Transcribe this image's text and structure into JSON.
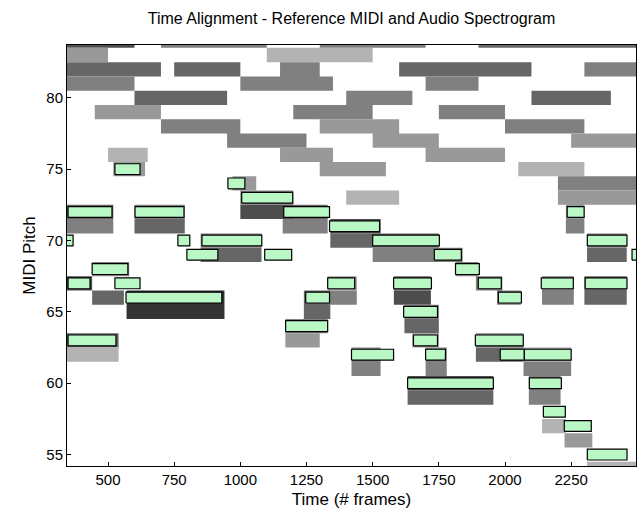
{
  "chart_data": {
    "type": "pianoroll",
    "title": "Time Alignment - Reference MIDI and Audio Spectrogram",
    "x_label": "Time (# frames)",
    "y_label": "MIDI Pitch",
    "xlim": [
      345,
      2495
    ],
    "ylim": [
      54.2,
      83.7
    ],
    "xticks": [
      500,
      750,
      1000,
      1250,
      1500,
      1750,
      2000,
      2250
    ],
    "yticks": [
      55,
      60,
      65,
      70,
      75,
      80
    ],
    "grid": false,
    "color": "#b9f7c4",
    "notes": [
      {
        "pitch": 70,
        "start": 330,
        "end": 368
      },
      {
        "pitch": 72,
        "start": 349,
        "end": 515
      },
      {
        "pitch": 63,
        "start": 349,
        "end": 530
      },
      {
        "pitch": 67,
        "start": 349,
        "end": 432
      },
      {
        "pitch": 68,
        "start": 440,
        "end": 575
      },
      {
        "pitch": 67,
        "start": 526,
        "end": 621
      },
      {
        "pitch": 75,
        "start": 526,
        "end": 621
      },
      {
        "pitch": 72,
        "start": 602,
        "end": 787
      },
      {
        "pitch": 66,
        "start": 568,
        "end": 930
      },
      {
        "pitch": 70,
        "start": 764,
        "end": 809
      },
      {
        "pitch": 69,
        "start": 798,
        "end": 915
      },
      {
        "pitch": 70,
        "start": 855,
        "end": 1081
      },
      {
        "pitch": 74,
        "start": 953,
        "end": 1017
      },
      {
        "pitch": 73,
        "start": 1005,
        "end": 1198
      },
      {
        "pitch": 72,
        "start": 1164,
        "end": 1337
      },
      {
        "pitch": 69,
        "start": 1092,
        "end": 1194
      },
      {
        "pitch": 64,
        "start": 1171,
        "end": 1330
      },
      {
        "pitch": 66,
        "start": 1247,
        "end": 1337
      },
      {
        "pitch": 67,
        "start": 1330,
        "end": 1432
      },
      {
        "pitch": 71,
        "start": 1337,
        "end": 1526
      },
      {
        "pitch": 62,
        "start": 1420,
        "end": 1579
      },
      {
        "pitch": 70,
        "start": 1500,
        "end": 1752
      },
      {
        "pitch": 67,
        "start": 1579,
        "end": 1722
      },
      {
        "pitch": 65,
        "start": 1617,
        "end": 1745
      },
      {
        "pitch": 63,
        "start": 1654,
        "end": 1745
      },
      {
        "pitch": 62,
        "start": 1700,
        "end": 1775
      },
      {
        "pitch": 69,
        "start": 1733,
        "end": 1835
      },
      {
        "pitch": 60,
        "start": 1632,
        "end": 1956
      },
      {
        "pitch": 68,
        "start": 1813,
        "end": 1903
      },
      {
        "pitch": 67,
        "start": 1899,
        "end": 1986
      },
      {
        "pitch": 63,
        "start": 1888,
        "end": 2069
      },
      {
        "pitch": 66,
        "start": 1975,
        "end": 2062
      },
      {
        "pitch": 62,
        "start": 1982,
        "end": 2073
      },
      {
        "pitch": 62,
        "start": 2073,
        "end": 2250
      },
      {
        "pitch": 67,
        "start": 2137,
        "end": 2258
      },
      {
        "pitch": 60,
        "start": 2092,
        "end": 2213
      },
      {
        "pitch": 58,
        "start": 2145,
        "end": 2228
      },
      {
        "pitch": 72,
        "start": 2235,
        "end": 2299
      },
      {
        "pitch": 57,
        "start": 2224,
        "end": 2326
      },
      {
        "pitch": 67,
        "start": 2303,
        "end": 2461
      },
      {
        "pitch": 70,
        "start": 2311,
        "end": 2461
      },
      {
        "pitch": 55,
        "start": 2311,
        "end": 2461
      },
      {
        "pitch": 69,
        "start": 2480,
        "end": 2510
      }
    ],
    "spectrogram": [
      {
        "pitch": 63,
        "start": 345,
        "end": 540,
        "intensity": 0.6
      },
      {
        "pitch": 62,
        "start": 345,
        "end": 540,
        "intensity": 0.3
      },
      {
        "pitch": 67,
        "start": 345,
        "end": 440,
        "intensity": 0.7
      },
      {
        "pitch": 68,
        "start": 440,
        "end": 580,
        "intensity": 0.5
      },
      {
        "pitch": 66,
        "start": 440,
        "end": 560,
        "intensity": 0.6
      },
      {
        "pitch": 72,
        "start": 345,
        "end": 520,
        "intensity": 0.6
      },
      {
        "pitch": 71,
        "start": 345,
        "end": 520,
        "intensity": 0.5
      },
      {
        "pitch": 66,
        "start": 570,
        "end": 940,
        "intensity": 0.8
      },
      {
        "pitch": 65,
        "start": 570,
        "end": 940,
        "intensity": 0.8
      },
      {
        "pitch": 72,
        "start": 600,
        "end": 790,
        "intensity": 0.5
      },
      {
        "pitch": 71,
        "start": 600,
        "end": 790,
        "intensity": 0.6
      },
      {
        "pitch": 70,
        "start": 850,
        "end": 1080,
        "intensity": 0.5
      },
      {
        "pitch": 69,
        "start": 850,
        "end": 1080,
        "intensity": 0.6
      },
      {
        "pitch": 73,
        "start": 1000,
        "end": 1200,
        "intensity": 0.5
      },
      {
        "pitch": 72,
        "start": 1000,
        "end": 1200,
        "intensity": 0.7
      },
      {
        "pitch": 72,
        "start": 1160,
        "end": 1330,
        "intensity": 0.6
      },
      {
        "pitch": 71,
        "start": 1160,
        "end": 1330,
        "intensity": 0.5
      },
      {
        "pitch": 64,
        "start": 1170,
        "end": 1330,
        "intensity": 0.5
      },
      {
        "pitch": 63,
        "start": 1170,
        "end": 1300,
        "intensity": 0.4
      },
      {
        "pitch": 66,
        "start": 1240,
        "end": 1340,
        "intensity": 0.6
      },
      {
        "pitch": 65,
        "start": 1240,
        "end": 1340,
        "intensity": 0.6
      },
      {
        "pitch": 71,
        "start": 1340,
        "end": 1530,
        "intensity": 0.7
      },
      {
        "pitch": 70,
        "start": 1340,
        "end": 1530,
        "intensity": 0.6
      },
      {
        "pitch": 67,
        "start": 1330,
        "end": 1440,
        "intensity": 0.4
      },
      {
        "pitch": 66,
        "start": 1330,
        "end": 1440,
        "intensity": 0.5
      },
      {
        "pitch": 62,
        "start": 1420,
        "end": 1530,
        "intensity": 0.5
      },
      {
        "pitch": 61,
        "start": 1420,
        "end": 1530,
        "intensity": 0.5
      },
      {
        "pitch": 70,
        "start": 1500,
        "end": 1750,
        "intensity": 0.6
      },
      {
        "pitch": 69,
        "start": 1500,
        "end": 1750,
        "intensity": 0.5
      },
      {
        "pitch": 67,
        "start": 1580,
        "end": 1720,
        "intensity": 0.6
      },
      {
        "pitch": 66,
        "start": 1580,
        "end": 1720,
        "intensity": 0.7
      },
      {
        "pitch": 65,
        "start": 1620,
        "end": 1750,
        "intensity": 0.5
      },
      {
        "pitch": 64,
        "start": 1620,
        "end": 1750,
        "intensity": 0.6
      },
      {
        "pitch": 63,
        "start": 1650,
        "end": 1750,
        "intensity": 0.4
      },
      {
        "pitch": 62,
        "start": 1700,
        "end": 1780,
        "intensity": 0.5
      },
      {
        "pitch": 61,
        "start": 1700,
        "end": 1780,
        "intensity": 0.5
      },
      {
        "pitch": 60,
        "start": 1632,
        "end": 1956,
        "intensity": 0.7
      },
      {
        "pitch": 59,
        "start": 1632,
        "end": 1956,
        "intensity": 0.6
      },
      {
        "pitch": 69,
        "start": 1730,
        "end": 1840,
        "intensity": 0.5
      },
      {
        "pitch": 68,
        "start": 1813,
        "end": 1900,
        "intensity": 0.5
      },
      {
        "pitch": 67,
        "start": 1890,
        "end": 1990,
        "intensity": 0.5
      },
      {
        "pitch": 66,
        "start": 1970,
        "end": 2060,
        "intensity": 0.5
      },
      {
        "pitch": 63,
        "start": 1890,
        "end": 2070,
        "intensity": 0.5
      },
      {
        "pitch": 62,
        "start": 1890,
        "end": 2070,
        "intensity": 0.6
      },
      {
        "pitch": 61,
        "start": 2070,
        "end": 2250,
        "intensity": 0.5
      },
      {
        "pitch": 62,
        "start": 2070,
        "end": 2250,
        "intensity": 0.4
      },
      {
        "pitch": 60,
        "start": 2090,
        "end": 2210,
        "intensity": 0.5
      },
      {
        "pitch": 59,
        "start": 2090,
        "end": 2210,
        "intensity": 0.5
      },
      {
        "pitch": 57,
        "start": 2140,
        "end": 2230,
        "intensity": 0.3
      },
      {
        "pitch": 56,
        "start": 2225,
        "end": 2330,
        "intensity": 0.4
      },
      {
        "pitch": 54,
        "start": 2310,
        "end": 2495,
        "intensity": 0.3
      },
      {
        "pitch": 67,
        "start": 2140,
        "end": 2260,
        "intensity": 0.5
      },
      {
        "pitch": 66,
        "start": 2140,
        "end": 2260,
        "intensity": 0.5
      },
      {
        "pitch": 67,
        "start": 2300,
        "end": 2460,
        "intensity": 0.6
      },
      {
        "pitch": 66,
        "start": 2300,
        "end": 2460,
        "intensity": 0.6
      },
      {
        "pitch": 70,
        "start": 2310,
        "end": 2460,
        "intensity": 0.5
      },
      {
        "pitch": 69,
        "start": 2310,
        "end": 2460,
        "intensity": 0.6
      },
      {
        "pitch": 72,
        "start": 2230,
        "end": 2300,
        "intensity": 0.4
      },
      {
        "pitch": 71,
        "start": 2230,
        "end": 2300,
        "intensity": 0.5
      },
      {
        "pitch": 84,
        "start": 345,
        "end": 600,
        "intensity": 0.7
      },
      {
        "pitch": 84,
        "start": 700,
        "end": 1100,
        "intensity": 0.5
      },
      {
        "pitch": 84,
        "start": 1300,
        "end": 1700,
        "intensity": 0.5
      },
      {
        "pitch": 84,
        "start": 1900,
        "end": 2495,
        "intensity": 0.6
      },
      {
        "pitch": 83,
        "start": 345,
        "end": 500,
        "intensity": 0.4
      },
      {
        "pitch": 83,
        "start": 1100,
        "end": 1500,
        "intensity": 0.3
      },
      {
        "pitch": 82,
        "start": 345,
        "end": 700,
        "intensity": 0.6
      },
      {
        "pitch": 82,
        "start": 750,
        "end": 1000,
        "intensity": 0.6
      },
      {
        "pitch": 82,
        "start": 1150,
        "end": 1300,
        "intensity": 0.5
      },
      {
        "pitch": 82,
        "start": 1600,
        "end": 2100,
        "intensity": 0.6
      },
      {
        "pitch": 82,
        "start": 2300,
        "end": 2495,
        "intensity": 0.5
      },
      {
        "pitch": 81,
        "start": 345,
        "end": 600,
        "intensity": 0.5
      },
      {
        "pitch": 81,
        "start": 1000,
        "end": 1350,
        "intensity": 0.5
      },
      {
        "pitch": 81,
        "start": 1700,
        "end": 1900,
        "intensity": 0.5
      },
      {
        "pitch": 80,
        "start": 600,
        "end": 950,
        "intensity": 0.6
      },
      {
        "pitch": 80,
        "start": 1400,
        "end": 1650,
        "intensity": 0.5
      },
      {
        "pitch": 80,
        "start": 2100,
        "end": 2400,
        "intensity": 0.6
      },
      {
        "pitch": 79,
        "start": 450,
        "end": 700,
        "intensity": 0.4
      },
      {
        "pitch": 79,
        "start": 1200,
        "end": 1500,
        "intensity": 0.5
      },
      {
        "pitch": 79,
        "start": 1750,
        "end": 2000,
        "intensity": 0.5
      },
      {
        "pitch": 78,
        "start": 700,
        "end": 1000,
        "intensity": 0.5
      },
      {
        "pitch": 78,
        "start": 1300,
        "end": 1600,
        "intensity": 0.4
      },
      {
        "pitch": 78,
        "start": 2000,
        "end": 2300,
        "intensity": 0.5
      },
      {
        "pitch": 77,
        "start": 950,
        "end": 1250,
        "intensity": 0.5
      },
      {
        "pitch": 77,
        "start": 1500,
        "end": 1750,
        "intensity": 0.4
      },
      {
        "pitch": 77,
        "start": 2250,
        "end": 2495,
        "intensity": 0.4
      },
      {
        "pitch": 76,
        "start": 500,
        "end": 650,
        "intensity": 0.3
      },
      {
        "pitch": 76,
        "start": 1150,
        "end": 1350,
        "intensity": 0.4
      },
      {
        "pitch": 76,
        "start": 1700,
        "end": 2000,
        "intensity": 0.4
      },
      {
        "pitch": 75,
        "start": 520,
        "end": 640,
        "intensity": 0.4
      },
      {
        "pitch": 75,
        "start": 1300,
        "end": 1550,
        "intensity": 0.4
      },
      {
        "pitch": 75,
        "start": 2050,
        "end": 2300,
        "intensity": 0.3
      },
      {
        "pitch": 74,
        "start": 970,
        "end": 1060,
        "intensity": 0.4
      },
      {
        "pitch": 74,
        "start": 2200,
        "end": 2495,
        "intensity": 0.5
      },
      {
        "pitch": 73,
        "start": 1400,
        "end": 1600,
        "intensity": 0.3
      },
      {
        "pitch": 73,
        "start": 2200,
        "end": 2495,
        "intensity": 0.4
      }
    ]
  }
}
